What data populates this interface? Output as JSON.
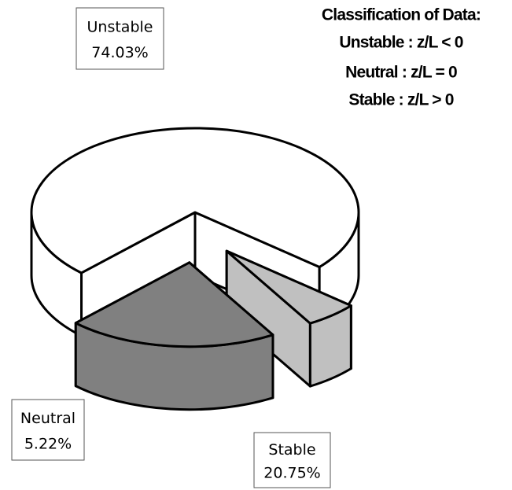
{
  "chart_data": {
    "type": "pie3d",
    "title": "Classification of Data:",
    "annotations": [
      "Unstable : z/L < 0",
      "Neutral : z/L = 0",
      "Stable : z/L > 0"
    ],
    "categories": [
      "Unstable",
      "Neutral",
      "Stable"
    ],
    "values": [
      74.03,
      5.22,
      20.75
    ],
    "value_labels": [
      "74.03%",
      "5.22%",
      "20.75%"
    ],
    "colors": [
      "#ffffff",
      "#c0c0c0",
      "#808080"
    ]
  }
}
